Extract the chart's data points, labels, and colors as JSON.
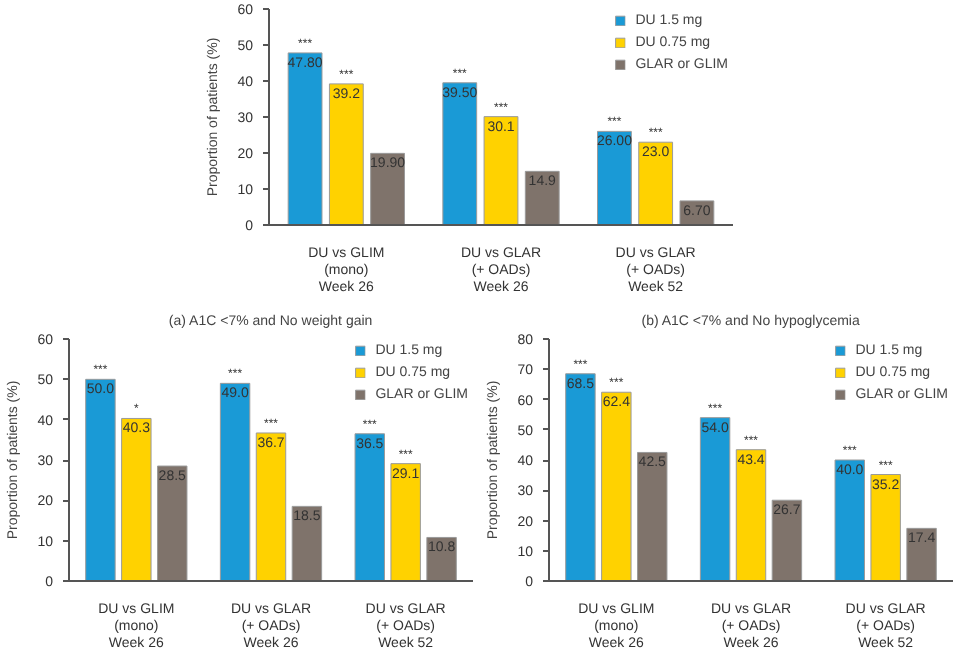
{
  "chart_data": [
    {
      "type": "bar",
      "categories": [
        "DU vs GLIM\n(mono)\nWeek 26",
        "DU vs GLAR\n(+ OADs)\nWeek 26",
        "DU vs GLAR\n(+ OADs)\nWeek 52"
      ],
      "ylabel": "Proportion of patients (%)",
      "ylim": [
        0,
        60
      ],
      "yticks": [
        0,
        10,
        20,
        30,
        40,
        50,
        60
      ],
      "grid": false,
      "legend": "top right",
      "series": [
        {
          "name": "DU 1.5 mg",
          "color": "#1a9ad6",
          "values": [
            47.8,
            39.5,
            26.0
          ],
          "value_labels": [
            "47.80",
            "39.50",
            "26.00"
          ]
        },
        {
          "name": "DU 0.75 mg",
          "color": "#ffd200",
          "values": [
            39.2,
            30.1,
            23.0
          ],
          "value_labels": [
            "39.2",
            "30.1",
            "23.0"
          ]
        },
        {
          "name": "GLAR or GLIM",
          "color": "#7f736b",
          "values": [
            19.9,
            14.9,
            6.7
          ],
          "value_labels": [
            "19.90",
            "14.9",
            "6.70"
          ]
        }
      ],
      "annotations": [
        "***",
        "***",
        "***",
        "***",
        "***",
        "***"
      ]
    },
    {
      "type": "bar",
      "title": "(a) A1C <7% and No weight gain",
      "categories": [
        "DU vs GLIM\n(mono)\nWeek 26",
        "DU vs GLAR\n(+ OADs)\nWeek 26",
        "DU vs GLAR\n(+ OADs)\nWeek 52"
      ],
      "ylabel": "Proportion of patients (%)",
      "ylim": [
        0,
        60
      ],
      "yticks": [
        0,
        10,
        20,
        30,
        40,
        50,
        60
      ],
      "grid": false,
      "legend": "top right",
      "series": [
        {
          "name": "DU 1.5 mg",
          "color": "#1a9ad6",
          "values": [
            50.0,
            49.0,
            36.5
          ],
          "value_labels": [
            "50.0",
            "49.0",
            "36.5"
          ]
        },
        {
          "name": "DU 0.75 mg",
          "color": "#ffd200",
          "values": [
            40.3,
            36.7,
            29.1
          ],
          "value_labels": [
            "40.3",
            "36.7",
            "29.1"
          ]
        },
        {
          "name": "GLAR or GLIM",
          "color": "#7f736b",
          "values": [
            28.5,
            18.5,
            10.8
          ],
          "value_labels": [
            "28.5",
            "18.5",
            "10.8"
          ]
        }
      ],
      "annotations": [
        "***",
        "*",
        "***",
        "***",
        "***",
        "***"
      ]
    },
    {
      "type": "bar",
      "title": "(b) A1C <7% and No hypoglycemia",
      "categories": [
        "DU vs GLIM\n(mono)\nWeek 26",
        "DU vs GLAR\n(+ OADs)\nWeek 26",
        "DU vs GLAR\n(+ OADs)\nWeek 52"
      ],
      "ylabel": "Proportion of patients (%)",
      "ylim": [
        0,
        80
      ],
      "yticks": [
        0,
        10,
        20,
        30,
        40,
        50,
        60,
        70,
        80
      ],
      "grid": false,
      "legend": "top right",
      "series": [
        {
          "name": "DU 1.5 mg",
          "color": "#1a9ad6",
          "values": [
            68.5,
            54.0,
            40.0
          ],
          "value_labels": [
            "68.5",
            "54.0",
            "40.0"
          ]
        },
        {
          "name": "DU 0.75 mg",
          "color": "#ffd200",
          "values": [
            62.4,
            43.4,
            35.2
          ],
          "value_labels": [
            "62.4",
            "43.4",
            "35.2"
          ]
        },
        {
          "name": "GLAR or GLIM",
          "color": "#7f736b",
          "values": [
            42.5,
            26.7,
            17.4
          ],
          "value_labels": [
            "42.5",
            "26.7",
            "17.4"
          ]
        }
      ],
      "annotations": [
        "***",
        "***",
        "***",
        "***",
        "***",
        "***"
      ]
    }
  ]
}
